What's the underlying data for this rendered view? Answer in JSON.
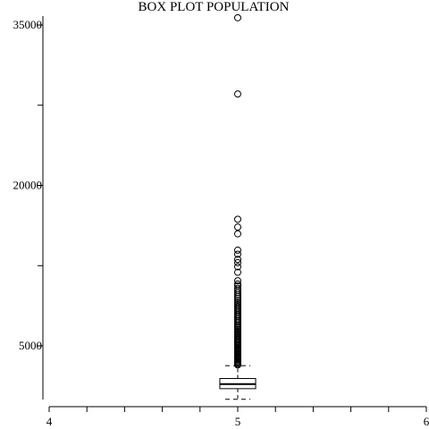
{
  "chart_data": {
    "type": "box",
    "title": "BOX PLOT POPULATION",
    "x_ticks": [
      {
        "value": 4,
        "label": "4"
      },
      {
        "value": 5,
        "label": "5"
      },
      {
        "value": 6,
        "label": "6"
      }
    ],
    "x_minor_step": 0.2,
    "xlim": [
      4,
      6
    ],
    "y_ticks": [
      {
        "value": 5000,
        "label": "5000"
      },
      {
        "value": 12500,
        "label": ""
      },
      {
        "value": 20000,
        "label": "20000"
      },
      {
        "value": 27500,
        "label": ""
      },
      {
        "value": 35000,
        "label": "35000"
      }
    ],
    "ylim": [
      2500,
      36000
    ],
    "box": {
      "x": 5,
      "whisker_low": 3,
      "q1": 1000,
      "median": 1430,
      "q3": 1950,
      "whisker_high": 3150,
      "width": 0.19
    },
    "outliers": [
      35682,
      28550,
      16840,
      16110,
      15480,
      13950,
      13570,
      13080,
      12780,
      12400,
      11880,
      11090,
      10790,
      10620,
      10380,
      10200,
      10000,
      9820,
      9630,
      9450,
      9270,
      9100,
      8950,
      8800,
      8650,
      8500,
      8350,
      8200,
      8050,
      7900,
      7760,
      7620,
      7480,
      7340,
      7200,
      7060,
      6920,
      6790,
      6660,
      6530,
      6400,
      6280,
      6160,
      6040,
      5920,
      5800,
      5680,
      5560,
      5440,
      5330,
      5220,
      5110,
      5000,
      4900,
      4800,
      4700,
      4600,
      4500,
      4400,
      4300,
      4200,
      4100,
      4000,
      3900,
      3800,
      3700,
      3600,
      3500,
      3400,
      3300,
      3220
    ]
  }
}
